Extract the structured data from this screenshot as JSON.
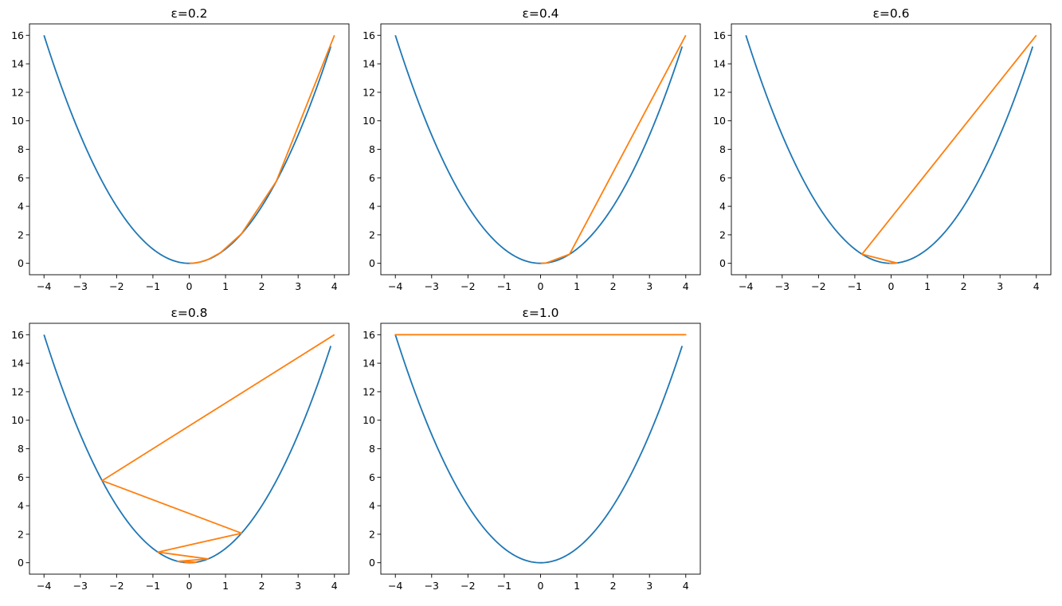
{
  "chart_data": [
    {
      "type": "line",
      "title": "ε=0.2",
      "xlabel": "",
      "ylabel": "",
      "xlim": [
        -4.4,
        4.4
      ],
      "ylim": [
        -0.8,
        16.8
      ],
      "xticks": [
        -4,
        -3,
        -2,
        -1,
        0,
        1,
        2,
        3,
        4
      ],
      "yticks": [
        0,
        2,
        4,
        6,
        8,
        10,
        12,
        14,
        16
      ],
      "grid": false,
      "series": [
        {
          "color": "#1f77b4",
          "function": "x^2",
          "x_range": [
            -4,
            3.9
          ]
        },
        {
          "color": "#ff7f0e",
          "x": [
            4,
            2.4,
            1.44,
            0.864,
            0.5184,
            0.311,
            0.1866,
            0.112,
            0.0672,
            0.0403,
            0.0242,
            0.0145,
            0.0087,
            0.0052,
            0.0031,
            0.0019,
            0.0011,
            0.0007
          ],
          "y": "x^2"
        }
      ]
    },
    {
      "type": "line",
      "title": "ε=0.4",
      "xlabel": "",
      "ylabel": "",
      "xlim": [
        -4.4,
        4.4
      ],
      "ylim": [
        -0.8,
        16.8
      ],
      "xticks": [
        -4,
        -3,
        -2,
        -1,
        0,
        1,
        2,
        3,
        4
      ],
      "yticks": [
        0,
        2,
        4,
        6,
        8,
        10,
        12,
        14,
        16
      ],
      "grid": false,
      "series": [
        {
          "color": "#1f77b4",
          "function": "x^2",
          "x_range": [
            -4,
            3.9
          ]
        },
        {
          "color": "#ff7f0e",
          "x": [
            4,
            0.8,
            0.16,
            0.032,
            0.0064,
            0.0013,
            0.0003
          ],
          "y": "x^2"
        }
      ]
    },
    {
      "type": "line",
      "title": "ε=0.6",
      "xlabel": "",
      "ylabel": "",
      "xlim": [
        -4.4,
        4.4
      ],
      "ylim": [
        -0.8,
        16.8
      ],
      "xticks": [
        -4,
        -3,
        -2,
        -1,
        0,
        1,
        2,
        3,
        4
      ],
      "yticks": [
        0,
        2,
        4,
        6,
        8,
        10,
        12,
        14,
        16
      ],
      "grid": false,
      "series": [
        {
          "color": "#1f77b4",
          "function": "x^2",
          "x_range": [
            -4,
            3.9
          ]
        },
        {
          "color": "#ff7f0e",
          "x": [
            4,
            -0.8,
            0.16,
            -0.032,
            0.0064,
            -0.0013,
            0.0003
          ],
          "y": "x^2"
        }
      ]
    },
    {
      "type": "line",
      "title": "ε=0.8",
      "xlabel": "",
      "ylabel": "",
      "xlim": [
        -4.4,
        4.4
      ],
      "ylim": [
        -0.8,
        16.8
      ],
      "xticks": [
        -4,
        -3,
        -2,
        -1,
        0,
        1,
        2,
        3,
        4
      ],
      "yticks": [
        0,
        2,
        4,
        6,
        8,
        10,
        12,
        14,
        16
      ],
      "grid": false,
      "series": [
        {
          "color": "#1f77b4",
          "function": "x^2",
          "x_range": [
            -4,
            3.9
          ]
        },
        {
          "color": "#ff7f0e",
          "x": [
            4,
            -2.4,
            1.44,
            -0.864,
            0.5184,
            -0.311,
            0.1866,
            -0.112,
            0.0672,
            -0.0403,
            0.0242,
            -0.0145,
            0.0087
          ],
          "y": "x^2"
        }
      ]
    },
    {
      "type": "line",
      "title": "ε=1.0",
      "xlabel": "",
      "ylabel": "",
      "xlim": [
        -4.4,
        4.4
      ],
      "ylim": [
        -0.8,
        16.8
      ],
      "xticks": [
        -4,
        -3,
        -2,
        -1,
        0,
        1,
        2,
        3,
        4
      ],
      "yticks": [
        0,
        2,
        4,
        6,
        8,
        10,
        12,
        14,
        16
      ],
      "grid": false,
      "series": [
        {
          "color": "#1f77b4",
          "function": "x^2",
          "x_range": [
            -4,
            3.9
          ]
        },
        {
          "color": "#ff7f0e",
          "x": [
            4,
            -4,
            4,
            -4,
            4,
            -4,
            4,
            -4,
            4,
            -4,
            4
          ],
          "y": "x^2"
        }
      ]
    }
  ]
}
